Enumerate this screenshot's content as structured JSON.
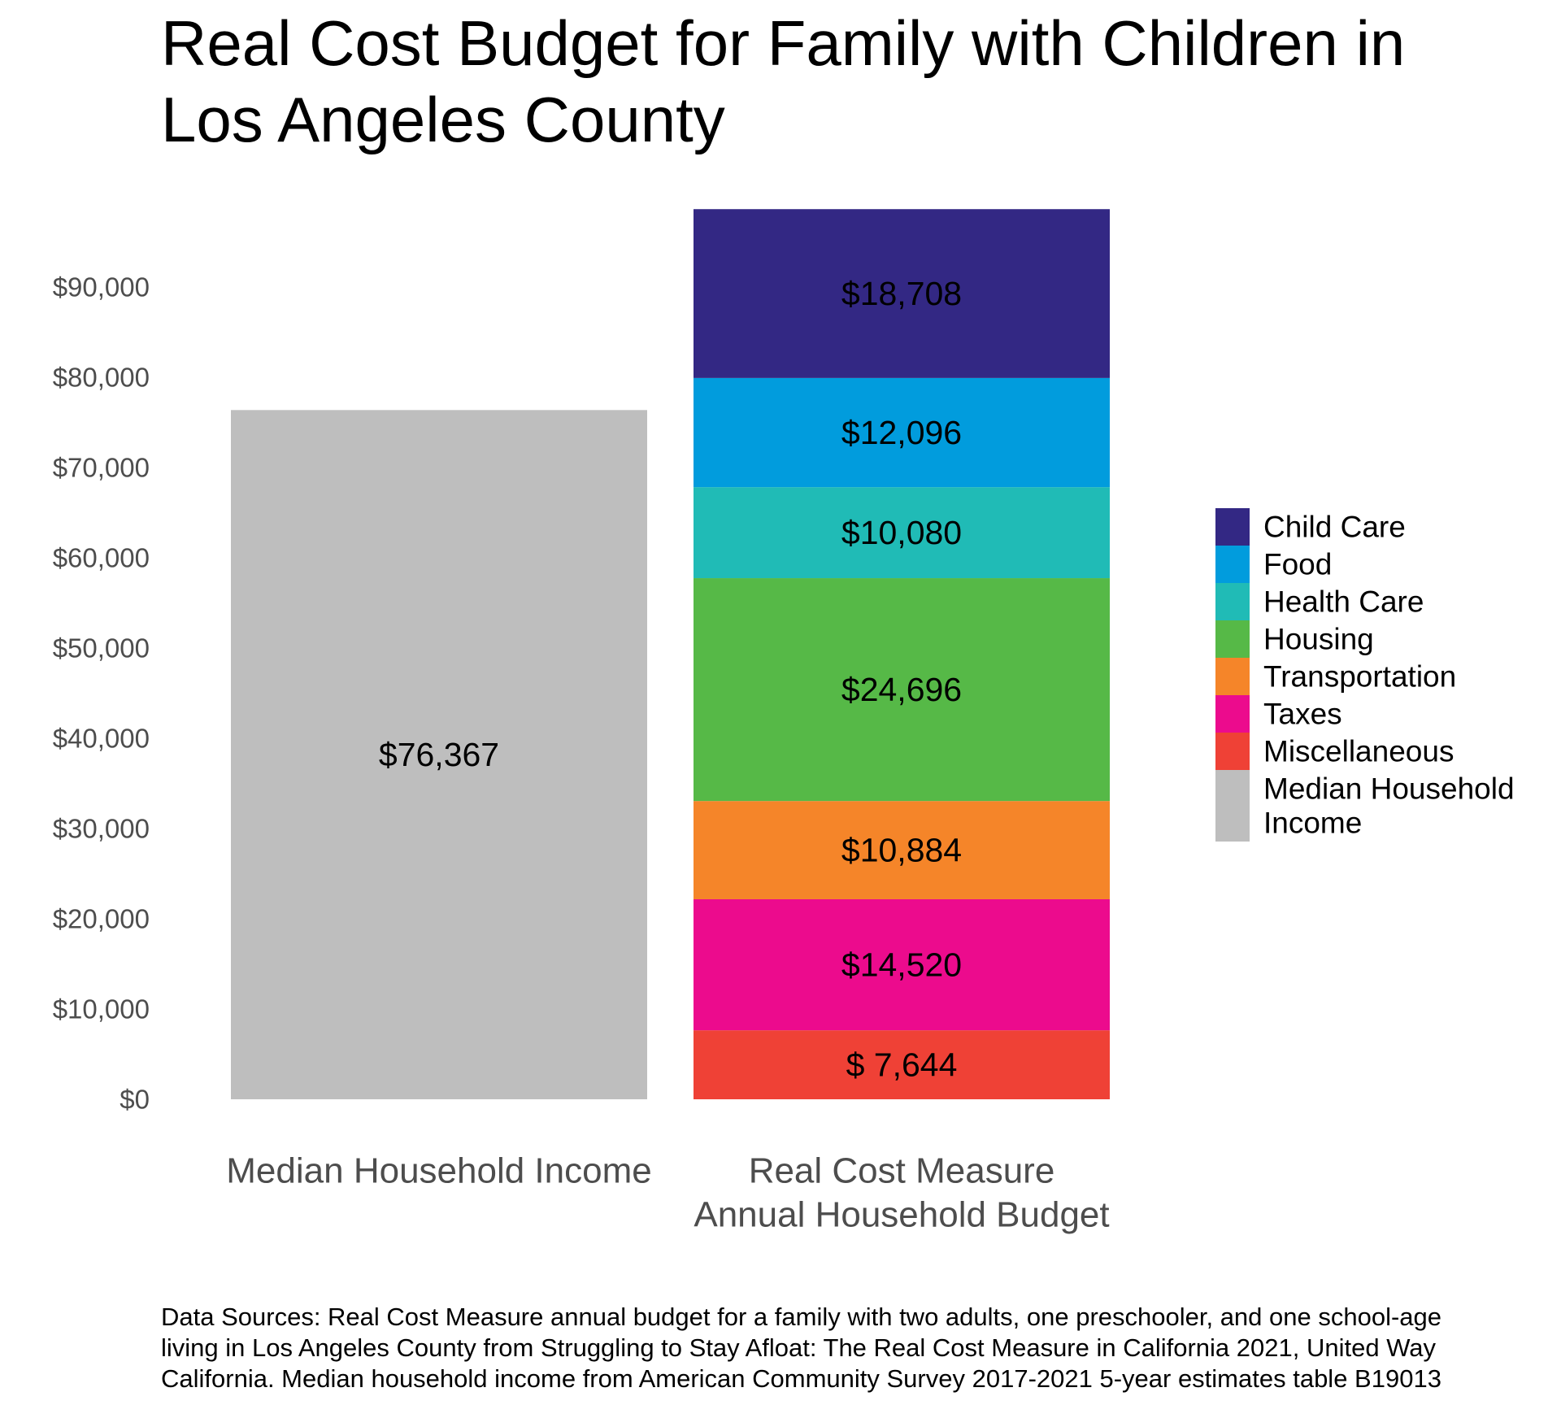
{
  "chart_data": {
    "type": "bar",
    "stacked": true,
    "title": "Real Cost Budget for Family with Children in Los Angeles County",
    "title_lines": [
      "Real Cost Budget for Family with Children in",
      "Los Angeles County"
    ],
    "xlabel": "",
    "ylabel": "",
    "ylim": [
      0,
      99000
    ],
    "yticks": [
      0,
      10000,
      20000,
      30000,
      40000,
      50000,
      60000,
      70000,
      80000,
      90000
    ],
    "ytick_labels": [
      "$0",
      "$10,000",
      "$20,000",
      "$30,000",
      "$40,000",
      "$50,000",
      "$60,000",
      "$70,000",
      "$80,000",
      "$90,000"
    ],
    "grid": false,
    "legend_position": "right",
    "categories": [
      {
        "lines": [
          "Median Household Income"
        ]
      },
      {
        "lines": [
          "Real Cost Measure",
          "Annual Household Budget"
        ]
      }
    ],
    "series": [
      {
        "name": "Miscellaneous",
        "color": "#ef4136",
        "values": [
          0,
          7644
        ],
        "labels": [
          "",
          "$ 7,644"
        ]
      },
      {
        "name": "Taxes",
        "color": "#ec0b8d",
        "values": [
          0,
          14520
        ],
        "labels": [
          "",
          "$14,520"
        ]
      },
      {
        "name": "Transportation",
        "color": "#f58529",
        "values": [
          0,
          10884
        ],
        "labels": [
          "",
          "$10,884"
        ]
      },
      {
        "name": "Housing",
        "color": "#56b947",
        "values": [
          0,
          24696
        ],
        "labels": [
          "",
          "$24,696"
        ]
      },
      {
        "name": "Health Care",
        "color": "#20bbb6",
        "values": [
          0,
          10080
        ],
        "labels": [
          "",
          "$10,080"
        ]
      },
      {
        "name": "Food",
        "color": "#019cdd",
        "values": [
          0,
          12096
        ],
        "labels": [
          "",
          "$12,096"
        ]
      },
      {
        "name": "Child Care",
        "color": "#332884",
        "values": [
          0,
          18708
        ],
        "labels": [
          "",
          "$18,708"
        ]
      },
      {
        "name": "Median Household Income",
        "color": "#bebebe",
        "values": [
          76367,
          0
        ],
        "labels": [
          "$76,367",
          ""
        ]
      }
    ],
    "legend": [
      {
        "lines": [
          "Child Care"
        ],
        "color": "#332884"
      },
      {
        "lines": [
          "Food"
        ],
        "color": "#019cdd"
      },
      {
        "lines": [
          "Health Care"
        ],
        "color": "#20bbb6"
      },
      {
        "lines": [
          "Housing"
        ],
        "color": "#56b947"
      },
      {
        "lines": [
          "Transportation"
        ],
        "color": "#f58529"
      },
      {
        "lines": [
          "Taxes"
        ],
        "color": "#ec0b8d"
      },
      {
        "lines": [
          "Miscellaneous"
        ],
        "color": "#ef4136"
      },
      {
        "lines": [
          "Median Household",
          "Income"
        ],
        "color": "#bebebe"
      }
    ]
  },
  "footnote": {
    "lines": [
      "Data Sources: Real Cost Measure annual budget for a family with two adults, one preschooler, and one school-age",
      "living in Los Angeles County from Struggling to Stay Afloat: The Real Cost Measure in California 2021, United Way",
      "California. Median household income from American Community Survey 2017-2021 5-year estimates table B19013"
    ]
  }
}
